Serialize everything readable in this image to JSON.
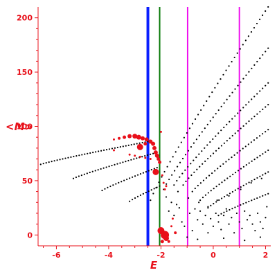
{
  "chart_data": {
    "type": "scatter",
    "xlabel": "E",
    "ylabel": "<M>",
    "xlim": [
      -6.7,
      2.2
    ],
    "ylim": [
      -10,
      210
    ],
    "x_ticks": [
      "-6",
      "-4",
      "-2",
      "0",
      "2"
    ],
    "y_ticks": [
      "0",
      "50",
      "100",
      "150",
      "200"
    ],
    "x_tick_values": [
      -6,
      -4,
      -2,
      0,
      2
    ],
    "y_tick_values": [
      0,
      50,
      100,
      150,
      200
    ],
    "grid": false,
    "colors": {
      "axis": "#e8101a",
      "black_dots": "#000000",
      "red_dots": "#e8101a",
      "blue_line": "#0a1fff",
      "green_line": "#0a7a0a",
      "magenta_line": "#ee10ee"
    },
    "vertical_lines": [
      {
        "x": -2.5,
        "color": "#0a1fff"
      },
      {
        "x": -2.05,
        "color": "#0a7a0a"
      },
      {
        "x": -0.98,
        "color": "#ee10ee"
      },
      {
        "x": 1.0,
        "color": "#ee10ee"
      }
    ],
    "black_branches": [
      {
        "x_start": -6.6,
        "y_start": 65,
        "x_end": -2.5,
        "y_end": 86
      },
      {
        "x_start": -5.35,
        "y_start": 52,
        "x_end": -2.3,
        "y_end": 75
      },
      {
        "x_start": -4.25,
        "y_start": 41,
        "x_end": -2.15,
        "y_end": 62
      },
      {
        "x_start": -3.2,
        "y_start": 31,
        "x_end": -2.05,
        "y_end": 45
      },
      {
        "x_start": -2.4,
        "y_start": 32,
        "x_end": 2.1,
        "y_end": 210
      },
      {
        "x_start": -1.9,
        "y_start": 42,
        "x_end": 2.1,
        "y_end": 172
      },
      {
        "x_start": -1.5,
        "y_start": 46,
        "x_end": 2.1,
        "y_end": 140
      },
      {
        "x_start": -1.15,
        "y_start": 46,
        "x_end": 2.1,
        "y_end": 120
      },
      {
        "x_start": -0.8,
        "y_start": 40,
        "x_end": 2.1,
        "y_end": 97
      },
      {
        "x_start": -0.5,
        "y_start": 32,
        "x_end": 2.1,
        "y_end": 78
      },
      {
        "x_start": -0.2,
        "y_start": 25,
        "x_end": 2.1,
        "y_end": 58
      },
      {
        "x_start": 0.2,
        "y_start": 18,
        "x_end": 2.1,
        "y_end": 38
      }
    ],
    "red_points": [
      {
        "x": -3.8,
        "y": 88,
        "s": 1.5
      },
      {
        "x": -3.6,
        "y": 89,
        "s": 2
      },
      {
        "x": -3.4,
        "y": 90,
        "s": 2.5
      },
      {
        "x": -3.2,
        "y": 91,
        "s": 3
      },
      {
        "x": -3.0,
        "y": 91,
        "s": 3.5
      },
      {
        "x": -2.85,
        "y": 90,
        "s": 3.5
      },
      {
        "x": -2.7,
        "y": 89,
        "s": 3
      },
      {
        "x": -2.55,
        "y": 88,
        "s": 3
      },
      {
        "x": -2.4,
        "y": 86,
        "s": 3
      },
      {
        "x": -2.3,
        "y": 84,
        "s": 3
      },
      {
        "x": -2.25,
        "y": 80,
        "s": 3
      },
      {
        "x": -2.2,
        "y": 76,
        "s": 3
      },
      {
        "x": -2.15,
        "y": 73,
        "s": 3
      },
      {
        "x": -2.1,
        "y": 70,
        "s": 2.5
      },
      {
        "x": -2.05,
        "y": 67,
        "s": 2.5
      },
      {
        "x": -2.8,
        "y": 81,
        "s": 4.5
      },
      {
        "x": -2.6,
        "y": 84,
        "s": 2.5
      },
      {
        "x": -3.8,
        "y": 78,
        "s": 1.5
      },
      {
        "x": -3.2,
        "y": 74,
        "s": 1.5
      },
      {
        "x": -3.0,
        "y": 73,
        "s": 1.5
      },
      {
        "x": -2.8,
        "y": 72,
        "s": 1.5
      },
      {
        "x": -2.6,
        "y": 71,
        "s": 1.5
      },
      {
        "x": -2.4,
        "y": 70,
        "s": 1.5
      },
      {
        "x": -2.2,
        "y": 58,
        "s": 4.5
      },
      {
        "x": -2.0,
        "y": 95,
        "s": 1.5
      },
      {
        "x": -1.95,
        "y": 55,
        "s": 1.5
      },
      {
        "x": -1.9,
        "y": 48,
        "s": 1.5
      },
      {
        "x": -1.85,
        "y": 42,
        "s": 1.5
      },
      {
        "x": -1.8,
        "y": 45,
        "s": 1.5
      },
      {
        "x": -2.0,
        "y": 4,
        "s": 5
      },
      {
        "x": -1.85,
        "y": 0,
        "s": 6
      },
      {
        "x": -1.8,
        "y": -3,
        "s": 4
      },
      {
        "x": -1.95,
        "y": -6,
        "s": 2.5
      },
      {
        "x": -1.7,
        "y": -6,
        "s": 2
      },
      {
        "x": -1.45,
        "y": 2,
        "s": 2
      },
      {
        "x": -1.55,
        "y": 15,
        "s": 1.5
      },
      {
        "x": -1.6,
        "y": 8,
        "s": 1.5
      }
    ],
    "black_scatter": [
      {
        "x": -1.8,
        "y": 35
      },
      {
        "x": -1.6,
        "y": 30
      },
      {
        "x": -1.4,
        "y": 28
      },
      {
        "x": -1.7,
        "y": 22
      },
      {
        "x": -1.5,
        "y": 18
      },
      {
        "x": -1.3,
        "y": 25
      },
      {
        "x": -1.2,
        "y": 12
      },
      {
        "x": -1.1,
        "y": 8
      },
      {
        "x": -0.9,
        "y": 20
      },
      {
        "x": -0.7,
        "y": 24
      },
      {
        "x": -0.6,
        "y": 14
      },
      {
        "x": -0.5,
        "y": 22
      },
      {
        "x": -0.4,
        "y": 10
      },
      {
        "x": -0.3,
        "y": 18
      },
      {
        "x": -0.2,
        "y": 26
      },
      {
        "x": -0.1,
        "y": 15
      },
      {
        "x": 0.0,
        "y": 8
      },
      {
        "x": 0.1,
        "y": 20
      },
      {
        "x": 0.2,
        "y": 12
      },
      {
        "x": 0.3,
        "y": 5
      },
      {
        "x": 0.4,
        "y": 18
      },
      {
        "x": 0.5,
        "y": 24
      },
      {
        "x": 0.6,
        "y": 10
      },
      {
        "x": 0.7,
        "y": 16
      },
      {
        "x": 0.8,
        "y": 2
      },
      {
        "x": 0.9,
        "y": 20
      },
      {
        "x": 1.0,
        "y": 12
      },
      {
        "x": 1.1,
        "y": 6
      },
      {
        "x": 1.2,
        "y": 22
      },
      {
        "x": 1.3,
        "y": 14
      },
      {
        "x": 1.4,
        "y": 18
      },
      {
        "x": 1.5,
        "y": 10
      },
      {
        "x": 1.6,
        "y": 4
      },
      {
        "x": 1.7,
        "y": 20
      },
      {
        "x": 1.8,
        "y": 12
      },
      {
        "x": 1.9,
        "y": 6
      },
      {
        "x": 2.0,
        "y": 16
      },
      {
        "x": -1.0,
        "y": -2
      },
      {
        "x": -0.8,
        "y": 4
      },
      {
        "x": -0.6,
        "y": -4
      },
      {
        "x": -0.2,
        "y": 2
      },
      {
        "x": 0.4,
        "y": -3
      },
      {
        "x": 1.2,
        "y": -5
      },
      {
        "x": 1.8,
        "y": -2
      },
      {
        "x": 2.05,
        "y": 26
      },
      {
        "x": -1.35,
        "y": 40
      },
      {
        "x": -0.95,
        "y": 34
      },
      {
        "x": -0.55,
        "y": 30
      },
      {
        "x": 0.15,
        "y": 32
      },
      {
        "x": 0.6,
        "y": 36
      },
      {
        "x": 1.05,
        "y": 42
      },
      {
        "x": 1.45,
        "y": 48
      },
      {
        "x": 1.85,
        "y": 52
      }
    ]
  }
}
